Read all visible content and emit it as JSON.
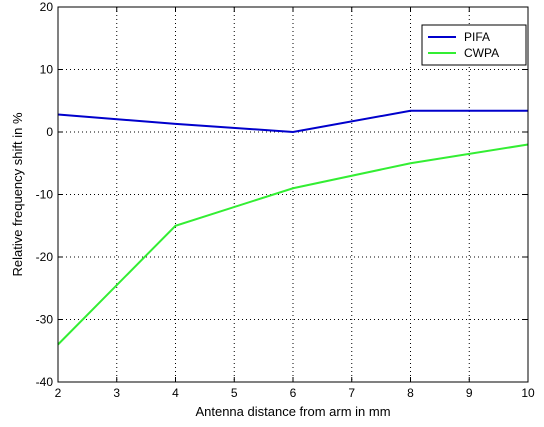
{
  "chart_data": {
    "type": "line",
    "xlabel": "Antenna distance from arm in mm",
    "ylabel": "Relative frequency shift in %",
    "xlim": [
      2,
      10
    ],
    "ylim": [
      -40,
      20
    ],
    "xticks": [
      "2",
      "3",
      "4",
      "5",
      "6",
      "7",
      "8",
      "9",
      "10"
    ],
    "yticks": [
      "-40",
      "-30",
      "-20",
      "-10",
      "0",
      "10",
      "20"
    ],
    "grid": true,
    "grid_style": "dotted",
    "legend_position": "top-right",
    "series": [
      {
        "name": "PIFA",
        "color": "#0000cc",
        "x": [
          2,
          4,
          6,
          8,
          10
        ],
        "y": [
          2.8,
          1.3,
          0,
          3.4,
          3.4
        ]
      },
      {
        "name": "CWPA",
        "color": "#33ee33",
        "x": [
          2,
          4,
          6,
          8,
          10
        ],
        "y": [
          -34,
          -15,
          -9,
          -5,
          -2
        ]
      }
    ]
  }
}
